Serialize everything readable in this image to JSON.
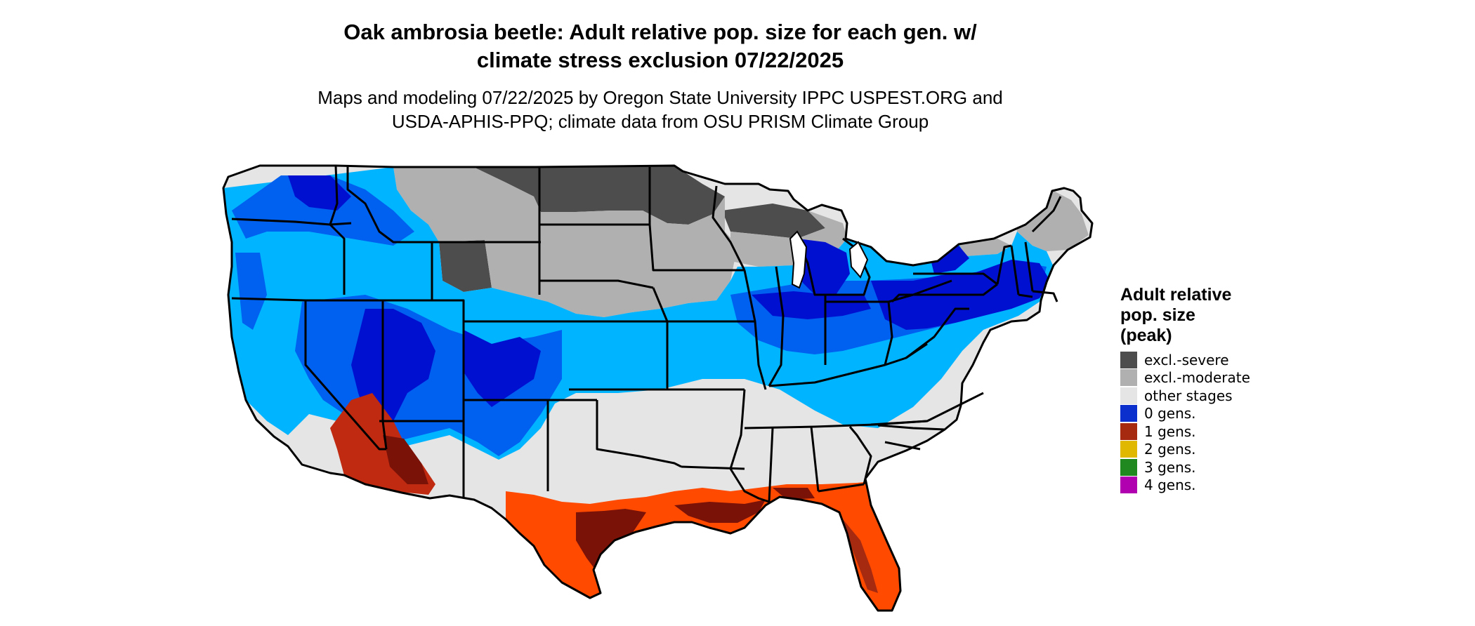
{
  "title": {
    "line1": "Oak ambrosia beetle: Adult relative pop. size for each gen. w/",
    "line2": "climate stress exclusion 07/22/2025"
  },
  "subtitle": {
    "line1": "Maps and modeling 07/22/2025 by Oregon State University IPPC USPEST.ORG and",
    "line2": "USDA-APHIS-PPQ; climate data from OSU PRISM Climate Group"
  },
  "legend": {
    "title_line1": "Adult relative",
    "title_line2": "pop. size",
    "title_line3": "(peak)",
    "items": [
      {
        "label": "excl.-severe",
        "color": "#4d4d4d"
      },
      {
        "label": "excl.-moderate",
        "color": "#b0b0b0"
      },
      {
        "label": "other stages",
        "color": "#e5e5e5"
      },
      {
        "label": "0 gens.",
        "color": "#0a2fcc"
      },
      {
        "label": "1 gens.",
        "color": "#a52a10"
      },
      {
        "label": "2 gens.",
        "color": "#e0b800"
      },
      {
        "label": "3 gens.",
        "color": "#208a20"
      },
      {
        "label": "4 gens.",
        "color": "#b000b0"
      }
    ]
  },
  "map_colors": {
    "blue_dark": "#0010d0",
    "blue_mid": "#0060f0",
    "blue_light": "#00b4ff",
    "red_dark": "#7a1208",
    "red_mid": "#c02a10",
    "orange": "#ff4a00",
    "grey_light": "#e5e5e5",
    "grey_mid": "#b0b0b0",
    "grey_dark": "#4d4d4d",
    "border": "#000000"
  }
}
